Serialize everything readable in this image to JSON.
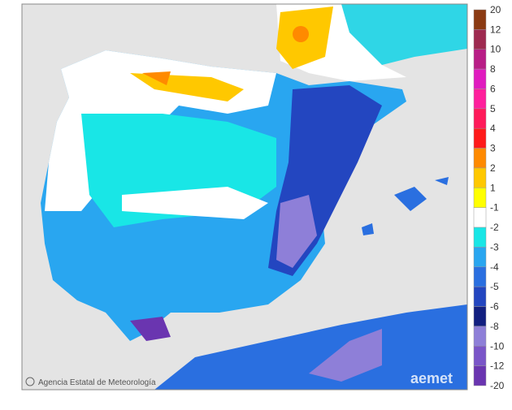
{
  "legend": {
    "labels": [
      "20",
      "12",
      "10",
      "8",
      "6",
      "5",
      "4",
      "3",
      "2",
      "1",
      "-1",
      "-2",
      "-3",
      "-4",
      "-5",
      "-6",
      "-8",
      "-10",
      "-12",
      "-20"
    ],
    "colors": [
      "#8b3a12",
      "#9e2a50",
      "#b81d86",
      "#e01bbf",
      "#ff1f9c",
      "#ff1a5a",
      "#ff1a1a",
      "#ff8a00",
      "#ffc800",
      "#ffff00",
      "#ffffff",
      "#19e6e6",
      "#29a6f0",
      "#2a6fe0",
      "#2346c0",
      "#121f80",
      "#8e7fd8",
      "#7a55c8",
      "#6a35b0"
    ]
  },
  "credit": "Agencia Estatal de Meteorología",
  "watermark": "aemet"
}
